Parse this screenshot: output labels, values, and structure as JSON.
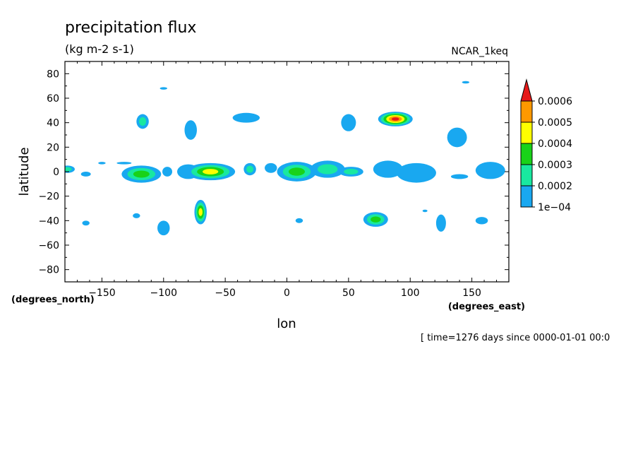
{
  "chart_data": {
    "type": "contour",
    "title": "precipitation flux",
    "units": "(kg m-2 s-1)",
    "dataset": "NCAR_1keq",
    "xlabel": "lon",
    "ylabel": "latitude",
    "x_units": "(degrees_east)",
    "y_units": "(degrees_north)",
    "xlim": [
      -180,
      180
    ],
    "ylim": [
      -90,
      90
    ],
    "xticks": [
      -150,
      -100,
      -50,
      0,
      50,
      100,
      150
    ],
    "yticks": [
      80,
      60,
      40,
      20,
      0,
      -20,
      -40,
      -60,
      -80
    ],
    "time_note": "[ time=1276 days since 0000-01-01 00:0",
    "colorbar": {
      "levels": [
        0.0001,
        0.0002,
        0.0003,
        0.0004,
        0.0005,
        0.0006
      ],
      "labels": [
        "1e-04",
        "0.0002",
        "0.0003",
        "0.0004",
        "0.0005",
        "0.0006"
      ],
      "colors": [
        "#19a8f0",
        "#19e8a0",
        "#19d219",
        "#ffff00",
        "#ff9900",
        "#e61919"
      ]
    },
    "blobs": [
      {
        "lon": -178,
        "lat": 2,
        "rx": 6,
        "ry": 3,
        "max": 2
      },
      {
        "lon": -163,
        "lat": -2,
        "rx": 4,
        "ry": 2,
        "max": 1
      },
      {
        "lon": -150,
        "lat": 7,
        "rx": 3,
        "ry": 1,
        "max": 1
      },
      {
        "lon": -132,
        "lat": 7,
        "rx": 6,
        "ry": 1,
        "max": 1
      },
      {
        "lon": -118,
        "lat": -2,
        "rx": 16,
        "ry": 7,
        "max": 3
      },
      {
        "lon": -97,
        "lat": 0,
        "rx": 4,
        "ry": 4,
        "max": 1
      },
      {
        "lon": -80,
        "lat": 0,
        "rx": 9,
        "ry": 6,
        "max": 1
      },
      {
        "lon": -62,
        "lat": 0,
        "rx": 20,
        "ry": 7,
        "max": 4
      },
      {
        "lon": -30,
        "lat": 2,
        "rx": 5,
        "ry": 5,
        "max": 2
      },
      {
        "lon": -13,
        "lat": 3,
        "rx": 5,
        "ry": 4,
        "max": 1
      },
      {
        "lon": 8,
        "lat": 0,
        "rx": 16,
        "ry": 8,
        "max": 3
      },
      {
        "lon": 33,
        "lat": 2,
        "rx": 14,
        "ry": 7,
        "max": 2
      },
      {
        "lon": 52,
        "lat": 0,
        "rx": 10,
        "ry": 4,
        "max": 2
      },
      {
        "lon": 82,
        "lat": 2,
        "rx": 12,
        "ry": 7,
        "max": 1
      },
      {
        "lon": 105,
        "lat": -1,
        "rx": 16,
        "ry": 8,
        "max": 1
      },
      {
        "lon": 140,
        "lat": -4,
        "rx": 7,
        "ry": 2,
        "max": 1
      },
      {
        "lon": 165,
        "lat": 1,
        "rx": 12,
        "ry": 7,
        "max": 1
      },
      {
        "lon": -117,
        "lat": 41,
        "rx": 5,
        "ry": 6,
        "max": 2
      },
      {
        "lon": -78,
        "lat": 34,
        "rx": 5,
        "ry": 8,
        "max": 1
      },
      {
        "lon": -33,
        "lat": 44,
        "rx": 11,
        "ry": 4,
        "max": 1
      },
      {
        "lon": 50,
        "lat": 40,
        "rx": 6,
        "ry": 7,
        "max": 1
      },
      {
        "lon": 88,
        "lat": 43,
        "rx": 14,
        "ry": 6,
        "max": 6
      },
      {
        "lon": 138,
        "lat": 28,
        "rx": 8,
        "ry": 8,
        "max": 1
      },
      {
        "lon": 145,
        "lat": 73,
        "rx": 3,
        "ry": 1,
        "max": 1
      },
      {
        "lon": -100,
        "lat": 68,
        "rx": 3,
        "ry": 1,
        "max": 1
      },
      {
        "lon": -70,
        "lat": -33,
        "rx": 5,
        "ry": 10,
        "max": 4
      },
      {
        "lon": -100,
        "lat": -46,
        "rx": 5,
        "ry": 6,
        "max": 1
      },
      {
        "lon": -122,
        "lat": -36,
        "rx": 3,
        "ry": 2,
        "max": 1
      },
      {
        "lon": -163,
        "lat": -42,
        "rx": 3,
        "ry": 2,
        "max": 1
      },
      {
        "lon": 10,
        "lat": -40,
        "rx": 3,
        "ry": 2,
        "max": 1
      },
      {
        "lon": 72,
        "lat": -39,
        "rx": 10,
        "ry": 6,
        "max": 3
      },
      {
        "lon": 125,
        "lat": -42,
        "rx": 4,
        "ry": 7,
        "max": 1
      },
      {
        "lon": 158,
        "lat": -40,
        "rx": 5,
        "ry": 3,
        "max": 1
      },
      {
        "lon": 112,
        "lat": -32,
        "rx": 2,
        "ry": 1,
        "max": 1
      }
    ]
  }
}
